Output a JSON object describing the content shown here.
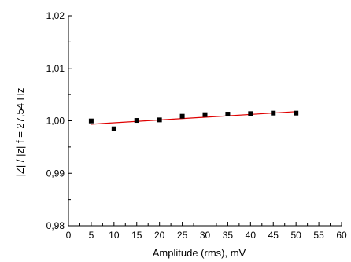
{
  "chart_data": {
    "type": "scatter",
    "xlabel": "Amplitude (rms), mV",
    "ylabel": "|Z| / |z| f = 27,54 Hz",
    "xlim": [
      0,
      60
    ],
    "ylim": [
      0.98,
      1.02
    ],
    "x_ticks": [
      0,
      5,
      10,
      15,
      20,
      25,
      30,
      35,
      40,
      45,
      50,
      55,
      60
    ],
    "y_ticks": [
      0.98,
      0.99,
      1.0,
      1.01,
      1.02
    ],
    "x_tick_labels": [
      "0",
      "5",
      "10",
      "15",
      "20",
      "25",
      "30",
      "35",
      "40",
      "45",
      "50",
      "55",
      "60"
    ],
    "y_tick_labels": [
      "0,98",
      "0,99",
      "1,00",
      "1,01",
      "1,02"
    ],
    "grid": false,
    "series": [
      {
        "x": [
          5,
          10,
          15,
          20,
          25,
          30,
          35,
          40,
          45,
          50
        ],
        "y": [
          0.99997,
          0.99847,
          1.00007,
          1.00017,
          1.00087,
          1.00117,
          1.00127,
          1.00137,
          1.00147,
          1.00147
        ],
        "marker": "square",
        "color": "#000000"
      }
    ],
    "fit_line": {
      "x": [
        5,
        50
      ],
      "y": [
        0.99935,
        1.00175
      ],
      "color": "#e00000"
    }
  }
}
